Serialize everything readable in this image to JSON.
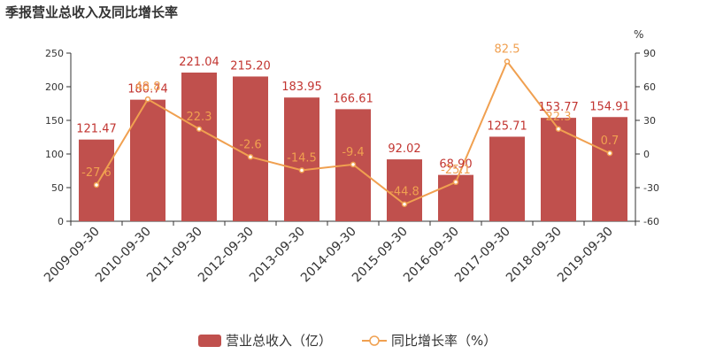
{
  "chart_data": {
    "type": "bar",
    "title": "季报营业总收入及同比增长率",
    "categories": [
      "2009-09-30",
      "2010-09-30",
      "2011-09-30",
      "2012-09-30",
      "2013-09-30",
      "2014-09-30",
      "2015-09-30",
      "2016-09-30",
      "2017-09-30",
      "2018-09-30",
      "2019-09-30"
    ],
    "series": [
      {
        "name": "营业总收入（亿）",
        "type": "bar",
        "axis": "left",
        "color": "#c0504d",
        "values": [
          121.47,
          180.74,
          221.04,
          215.2,
          183.95,
          166.61,
          92.02,
          68.9,
          125.71,
          153.77,
          154.91
        ],
        "labels": [
          "121.47",
          "180.74",
          "221.04",
          "215.20",
          "183.95",
          "166.61",
          "92.02",
          "68.90",
          "125.71",
          "153.77",
          "154.91"
        ]
      },
      {
        "name": "同比增长率（%）",
        "type": "line",
        "axis": "right",
        "color": "#f0a050",
        "values": [
          -27.6,
          48.8,
          22.3,
          -2.6,
          -14.5,
          -9.4,
          -44.8,
          -25.1,
          82.5,
          22.3,
          0.7
        ],
        "labels": [
          "-27.6",
          "48.8",
          "22.3",
          "-2.6",
          "-14.5",
          "-9.4",
          "-44.8",
          "-25.1",
          "82.5",
          "22.3",
          "0.7"
        ]
      }
    ],
    "y_left": {
      "min": 0,
      "max": 250,
      "ticks": [
        "0",
        "50",
        "100",
        "150",
        "200",
        "250"
      ]
    },
    "y_right": {
      "min": -60,
      "max": 90,
      "ticks": [
        "-60",
        "-30",
        "0",
        "30",
        "60",
        "90"
      ],
      "unit": "%"
    },
    "grid": false,
    "legend": "bottom-center"
  }
}
